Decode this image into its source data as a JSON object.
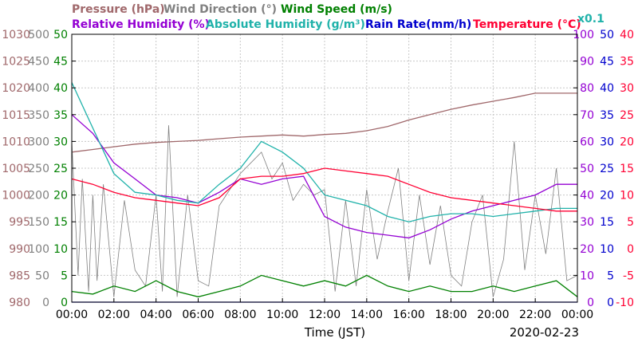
{
  "chart_data": {
    "type": "line",
    "title": "",
    "date": "2020-02-23",
    "x_label": "Time (JST)",
    "x_ticks": [
      "00:00",
      "02:00",
      "04:00",
      "06:00",
      "08:00",
      "10:00",
      "12:00",
      "14:00",
      "16:00",
      "18:00",
      "20:00",
      "22:00",
      "00:00"
    ],
    "grid": true,
    "legend": [
      {
        "text": "Pressure (hPa)",
        "color": "#a0686b"
      },
      {
        "text": "Wind Direction (°)",
        "color": "#808080"
      },
      {
        "text": "Wind Speed (m/s)",
        "color": "#008000"
      },
      {
        "text": "Relative Humidity (%)",
        "color": "#9400d3"
      },
      {
        "text": "Absolute Humidity (g/m³)",
        "color": "#20b2aa"
      },
      {
        "text": "Rain Rate(mm/h)",
        "color": "#0000cd"
      },
      {
        "text": "Temperature (°C)",
        "color": "#ff0033"
      },
      {
        "text": "x0.1",
        "color": "#20b2aa"
      }
    ],
    "axes": {
      "pressure": {
        "label": "Pressure (hPa)",
        "color": "#a0686b",
        "range": [
          980,
          1030
        ],
        "ticks": [
          "1030",
          "1025",
          "1020",
          "1015",
          "1010",
          "1005",
          "1000",
          "995",
          "990",
          "985",
          "980"
        ]
      },
      "wind_direction": {
        "label": "Wind Direction (°)",
        "color": "#808080",
        "range": [
          0,
          500
        ],
        "ticks": [
          "500",
          "450",
          "400",
          "350",
          "300",
          "250",
          "200",
          "150",
          "100",
          "50",
          "0"
        ]
      },
      "wind_speed": {
        "label": "Wind Speed (m/s)",
        "color": "#008000",
        "range": [
          0,
          50
        ],
        "ticks": [
          "50",
          "45",
          "40",
          "35",
          "30",
          "25",
          "20",
          "15",
          "10",
          "5",
          "0"
        ]
      },
      "humidity": {
        "label": "Relative Humidity (%)",
        "color": "#9400d3",
        "range": [
          0,
          100
        ],
        "ticks": [
          "100",
          "90",
          "80",
          "70",
          "60",
          "50",
          "40",
          "30",
          "20",
          "10",
          "0"
        ]
      },
      "rain_rate": {
        "label": "Rain Rate(mm/h)",
        "color": "#0000cd",
        "range": [
          0,
          50
        ],
        "ticks": [
          "50",
          "45",
          "40",
          "35",
          "30",
          "25",
          "20",
          "15",
          "10",
          "5",
          "0"
        ]
      },
      "temperature": {
        "label": "Temperature (°C)",
        "color": "#ff0033",
        "range": [
          -10,
          40
        ],
        "ticks": [
          "40",
          "35",
          "30",
          "25",
          "20",
          "15",
          "10",
          "5",
          "0",
          "-5",
          "-10"
        ]
      }
    },
    "series": [
      {
        "name": "Pressure (hPa)",
        "axis": "pressure",
        "color": "#a0686b",
        "x": [
          0,
          1,
          2,
          3,
          4,
          5,
          6,
          7,
          8,
          9,
          10,
          11,
          12,
          13,
          14,
          15,
          16,
          17,
          18,
          19,
          20,
          21,
          22,
          23,
          24
        ],
        "y": [
          1008,
          1008.5,
          1009,
          1009.5,
          1009.8,
          1010,
          1010.2,
          1010.5,
          1010.8,
          1011,
          1011.2,
          1011,
          1011.3,
          1011.5,
          1012,
          1012.8,
          1014,
          1015,
          1016,
          1016.8,
          1017.5,
          1018.2,
          1019,
          1019,
          1019
        ]
      },
      {
        "name": "Wind Direction (°)",
        "axis": "wind_direction",
        "color": "#808080",
        "x": [
          0,
          0.3,
          0.5,
          0.8,
          1,
          1.2,
          1.5,
          2,
          2.5,
          3,
          3.5,
          4,
          4.3,
          4.6,
          5,
          5.5,
          6,
          6.5,
          7,
          7.5,
          8,
          8.5,
          9,
          9.5,
          10,
          10.5,
          11,
          11.5,
          12,
          12.5,
          13,
          13.5,
          14,
          14.5,
          15,
          15.5,
          16,
          16.5,
          17,
          17.5,
          18,
          18.5,
          19,
          19.5,
          20,
          20.5,
          21,
          21.5,
          22,
          22.5,
          23,
          23.5,
          24
        ],
        "y": [
          300,
          50,
          230,
          20,
          200,
          40,
          220,
          10,
          190,
          60,
          30,
          200,
          20,
          330,
          10,
          200,
          40,
          30,
          180,
          210,
          240,
          260,
          280,
          230,
          260,
          190,
          220,
          200,
          210,
          20,
          190,
          30,
          210,
          80,
          170,
          250,
          40,
          200,
          70,
          180,
          50,
          30,
          150,
          200,
          10,
          80,
          300,
          60,
          200,
          90,
          250,
          40,
          50
        ]
      },
      {
        "name": "Wind Speed (m/s)",
        "axis": "wind_speed",
        "color": "#008000",
        "x": [
          0,
          1,
          2,
          3,
          4,
          5,
          6,
          7,
          8,
          9,
          10,
          11,
          12,
          13,
          14,
          15,
          16,
          17,
          18,
          19,
          20,
          21,
          22,
          23,
          24
        ],
        "y": [
          2,
          1.5,
          3,
          2,
          4,
          2,
          1,
          2,
          3,
          5,
          4,
          3,
          4,
          3,
          5,
          3,
          2,
          3,
          2,
          2,
          3,
          2,
          3,
          4,
          1
        ]
      },
      {
        "name": "Relative Humidity (%)",
        "axis": "humidity",
        "color": "#9400d3",
        "x": [
          0,
          1,
          2,
          3,
          4,
          5,
          6,
          7,
          8,
          9,
          10,
          11,
          12,
          13,
          14,
          15,
          16,
          17,
          18,
          19,
          20,
          21,
          22,
          23,
          24
        ],
        "y": [
          70,
          63,
          52,
          46,
          40,
          39,
          37,
          41,
          46,
          44,
          46,
          47,
          32,
          28,
          26,
          25,
          24,
          27,
          31,
          34,
          36,
          38,
          40,
          44,
          44
        ]
      },
      {
        "name": "Absolute Humidity (g/m³)",
        "axis": "humidity",
        "color": "#20b2aa",
        "x": [
          0,
          1,
          2,
          3,
          4,
          5,
          6,
          7,
          8,
          9,
          10,
          11,
          12,
          13,
          14,
          15,
          16,
          17,
          18,
          19,
          20,
          21,
          22,
          23,
          24
        ],
        "y": [
          82,
          65,
          48,
          41,
          40,
          38,
          37,
          44,
          50,
          60,
          56,
          50,
          40,
          38,
          36,
          32,
          30,
          32,
          33,
          33,
          32,
          33,
          34,
          35,
          35
        ]
      },
      {
        "name": "Rain Rate(mm/h)",
        "axis": "rain_rate",
        "color": "#0000cd",
        "x": [
          0,
          24
        ],
        "y": [
          0,
          0
        ]
      },
      {
        "name": "Temperature (°C)",
        "axis": "temperature",
        "color": "#ff0033",
        "x": [
          0,
          1,
          2,
          3,
          4,
          5,
          6,
          7,
          8,
          9,
          10,
          11,
          12,
          13,
          14,
          15,
          16,
          17,
          18,
          19,
          20,
          21,
          22,
          23,
          24
        ],
        "y": [
          13,
          12,
          10.5,
          9.5,
          9,
          8.5,
          8,
          9.5,
          13,
          13.5,
          13.5,
          14,
          15,
          14.5,
          14,
          13.5,
          12,
          10.5,
          9.5,
          9,
          8.5,
          8,
          7.5,
          7,
          7
        ]
      }
    ]
  }
}
